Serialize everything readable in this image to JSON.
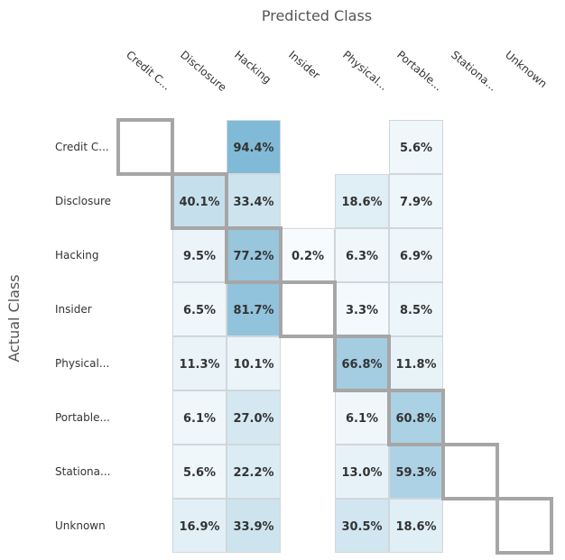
{
  "chart_data": {
    "type": "heatmap",
    "xlabel": "Predicted Class",
    "ylabel": "Actual Class",
    "x_categories": [
      "Credit C...",
      "Disclosure",
      "Hacking",
      "Insider",
      "Physical...",
      "Portable...",
      "Stationa...",
      "Unknown"
    ],
    "y_categories": [
      "Credit C...",
      "Disclosure",
      "Hacking",
      "Insider",
      "Physical...",
      "Portable...",
      "Stationa...",
      "Unknown"
    ],
    "values": [
      [
        null,
        null,
        94.4,
        null,
        null,
        5.6,
        null,
        null
      ],
      [
        null,
        40.1,
        33.4,
        null,
        18.6,
        7.9,
        null,
        null
      ],
      [
        null,
        9.5,
        77.2,
        0.2,
        6.3,
        6.9,
        null,
        null
      ],
      [
        null,
        6.5,
        81.7,
        null,
        3.3,
        8.5,
        null,
        null
      ],
      [
        null,
        11.3,
        10.1,
        null,
        66.8,
        11.8,
        null,
        null
      ],
      [
        null,
        6.1,
        27.0,
        null,
        6.1,
        60.8,
        null,
        null
      ],
      [
        null,
        5.6,
        22.2,
        null,
        13.0,
        59.3,
        null,
        null
      ],
      [
        null,
        16.9,
        33.9,
        null,
        30.5,
        18.6,
        null,
        null
      ]
    ],
    "value_suffix": "%",
    "colors": {
      "low": "#f7fbfd",
      "high": "#7ab6d4",
      "cell_border": "#d0d7dc",
      "diagonal_border": "#a6a6a6"
    }
  }
}
